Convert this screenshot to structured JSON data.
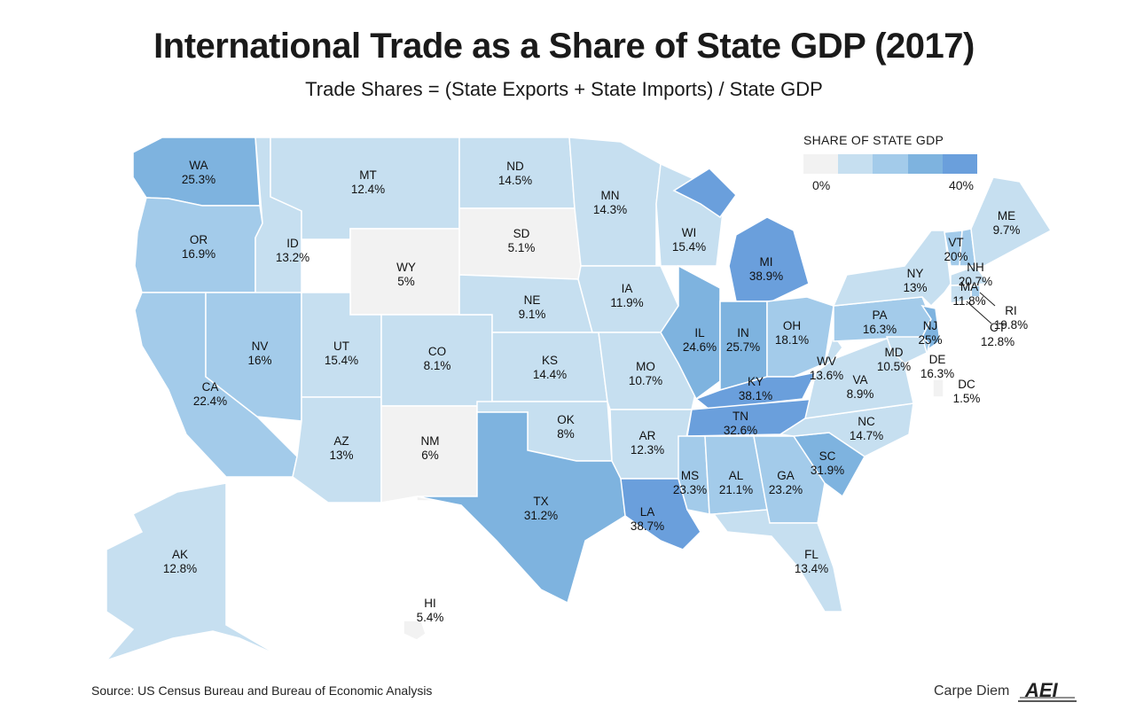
{
  "title": "International Trade as a Share of State GDP (2017)",
  "subtitle": "Trade Shares = (State Exports + State Imports) / State GDP",
  "legend": {
    "title": "SHARE OF STATE GDP",
    "min_label": "0%",
    "max_label": "40%",
    "colors": [
      "#f2f2f2",
      "#c6dff0",
      "#a3cbea",
      "#7eb3df",
      "#6a9fdc"
    ],
    "bins": [
      0,
      8,
      16,
      24,
      32,
      40
    ]
  },
  "states": [
    {
      "abbr": "WA",
      "label": "25.3%",
      "value": 25.3
    },
    {
      "abbr": "OR",
      "label": "16.9%",
      "value": 16.9
    },
    {
      "abbr": "CA",
      "label": "22.4%",
      "value": 22.4
    },
    {
      "abbr": "ID",
      "label": "13.2%",
      "value": 13.2
    },
    {
      "abbr": "NV",
      "label": "16%",
      "value": 16
    },
    {
      "abbr": "MT",
      "label": "12.4%",
      "value": 12.4
    },
    {
      "abbr": "WY",
      "label": "5%",
      "value": 5
    },
    {
      "abbr": "UT",
      "label": "15.4%",
      "value": 15.4
    },
    {
      "abbr": "AZ",
      "label": "13%",
      "value": 13
    },
    {
      "abbr": "CO",
      "label": "8.1%",
      "value": 8.1
    },
    {
      "abbr": "NM",
      "label": "6%",
      "value": 6
    },
    {
      "abbr": "ND",
      "label": "14.5%",
      "value": 14.5
    },
    {
      "abbr": "SD",
      "label": "5.1%",
      "value": 5.1
    },
    {
      "abbr": "NE",
      "label": "9.1%",
      "value": 9.1
    },
    {
      "abbr": "KS",
      "label": "14.4%",
      "value": 14.4
    },
    {
      "abbr": "OK",
      "label": "8%",
      "value": 8
    },
    {
      "abbr": "TX",
      "label": "31.2%",
      "value": 31.2
    },
    {
      "abbr": "MN",
      "label": "14.3%",
      "value": 14.3
    },
    {
      "abbr": "IA",
      "label": "11.9%",
      "value": 11.9
    },
    {
      "abbr": "MO",
      "label": "10.7%",
      "value": 10.7
    },
    {
      "abbr": "AR",
      "label": "12.3%",
      "value": 12.3
    },
    {
      "abbr": "LA",
      "label": "38.7%",
      "value": 38.7
    },
    {
      "abbr": "WI",
      "label": "15.4%",
      "value": 15.4
    },
    {
      "abbr": "IL",
      "label": "24.6%",
      "value": 24.6
    },
    {
      "abbr": "MI",
      "label": "38.9%",
      "value": 38.9
    },
    {
      "abbr": "IN",
      "label": "25.7%",
      "value": 25.7
    },
    {
      "abbr": "OH",
      "label": "18.1%",
      "value": 18.1
    },
    {
      "abbr": "KY",
      "label": "38.1%",
      "value": 38.1
    },
    {
      "abbr": "TN",
      "label": "32.6%",
      "value": 32.6
    },
    {
      "abbr": "MS",
      "label": "23.3%",
      "value": 23.3
    },
    {
      "abbr": "AL",
      "label": "21.1%",
      "value": 21.1
    },
    {
      "abbr": "GA",
      "label": "23.2%",
      "value": 23.2
    },
    {
      "abbr": "FL",
      "label": "13.4%",
      "value": 13.4
    },
    {
      "abbr": "SC",
      "label": "31.9%",
      "value": 31.9
    },
    {
      "abbr": "NC",
      "label": "14.7%",
      "value": 14.7
    },
    {
      "abbr": "VA",
      "label": "8.9%",
      "value": 8.9
    },
    {
      "abbr": "WV",
      "label": "13.6%",
      "value": 13.6
    },
    {
      "abbr": "PA",
      "label": "16.3%",
      "value": 16.3
    },
    {
      "abbr": "NY",
      "label": "13%",
      "value": 13
    },
    {
      "abbr": "VT",
      "label": "20%",
      "value": 20
    },
    {
      "abbr": "NH",
      "label": "20.7%",
      "value": 20.7
    },
    {
      "abbr": "ME",
      "label": "9.7%",
      "value": 9.7
    },
    {
      "abbr": "MA",
      "label": "11.8%",
      "value": 11.8
    },
    {
      "abbr": "RI",
      "label": "19.8%",
      "value": 19.8
    },
    {
      "abbr": "CT",
      "label": "12.8%",
      "value": 12.8
    },
    {
      "abbr": "NJ",
      "label": "25%",
      "value": 25
    },
    {
      "abbr": "DE",
      "label": "16.3%",
      "value": 16.3
    },
    {
      "abbr": "MD",
      "label": "10.5%",
      "value": 10.5
    },
    {
      "abbr": "DC",
      "label": "1.5%",
      "value": 1.5
    },
    {
      "abbr": "AK",
      "label": "12.8%",
      "value": 12.8
    },
    {
      "abbr": "HI",
      "label": "5.4%",
      "value": 5.4
    }
  ],
  "source": "Source: US Census Bureau and Bureau of Economic Analysis",
  "brand": {
    "text": "Carpe Diem",
    "logo_text": "AEI"
  }
}
